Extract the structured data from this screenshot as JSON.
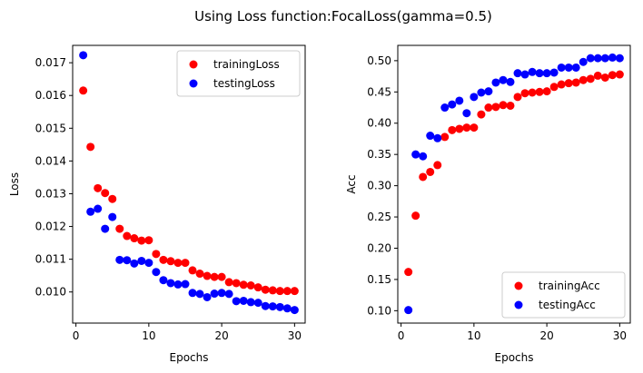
{
  "figure": {
    "suptitle": "Using Loss function:FocalLoss(gamma=0.5)"
  },
  "colors": {
    "training": "#ff0000",
    "testing": "#0000ff"
  },
  "chart_data": [
    {
      "type": "scatter",
      "title": "",
      "xlabel": "Epochs",
      "ylabel": "Loss",
      "xlim": [
        -0.45,
        31.45
      ],
      "ylim": [
        0.00905,
        0.01753
      ],
      "xticks": [
        0,
        10,
        20,
        30
      ],
      "xtick_labels": [
        "0",
        "10",
        "20",
        "30"
      ],
      "yticks": [
        0.01,
        0.011,
        0.012,
        0.013,
        0.014,
        0.015,
        0.016,
        0.017
      ],
      "ytick_labels": [
        "0.010",
        "0.011",
        "0.012",
        "0.013",
        "0.014",
        "0.015",
        "0.016",
        "0.017"
      ],
      "grid": false,
      "legend_position": "top-right",
      "x": [
        1,
        2,
        3,
        4,
        5,
        6,
        7,
        8,
        9,
        10,
        11,
        12,
        13,
        14,
        15,
        16,
        17,
        18,
        19,
        20,
        21,
        22,
        23,
        24,
        25,
        26,
        27,
        28,
        29,
        30
      ],
      "series": [
        {
          "name": "trainingLoss",
          "color": "#ff0000",
          "values": [
            0.01615,
            0.01443,
            0.01317,
            0.01302,
            0.01284,
            0.01193,
            0.01171,
            0.01164,
            0.01157,
            0.01158,
            0.01116,
            0.01098,
            0.01094,
            0.01089,
            0.01089,
            0.01066,
            0.01056,
            0.01049,
            0.01046,
            0.01046,
            0.0103,
            0.01027,
            0.01022,
            0.0102,
            0.01014,
            0.01007,
            0.01005,
            0.01003,
            0.01003,
            0.01003
          ]
        },
        {
          "name": "testingLoss",
          "color": "#0000ff",
          "values": [
            0.01723,
            0.01245,
            0.01254,
            0.01193,
            0.01229,
            0.01098,
            0.01097,
            0.01087,
            0.01095,
            0.01089,
            0.01061,
            0.01036,
            0.01027,
            0.01023,
            0.01024,
            0.00997,
            0.00994,
            0.00984,
            0.00995,
            0.00997,
            0.00994,
            0.00972,
            0.00973,
            0.00969,
            0.00967,
            0.00957,
            0.00956,
            0.00954,
            0.0095,
            0.00945
          ]
        }
      ]
    },
    {
      "type": "scatter",
      "title": "",
      "xlabel": "Epochs",
      "ylabel": "Acc",
      "xlim": [
        -0.45,
        31.45
      ],
      "ylim": [
        0.0802,
        0.5245
      ],
      "xticks": [
        0,
        10,
        20,
        30
      ],
      "xtick_labels": [
        "0",
        "10",
        "20",
        "30"
      ],
      "yticks": [
        0.1,
        0.15,
        0.2,
        0.25,
        0.3,
        0.35,
        0.4,
        0.45,
        0.5
      ],
      "ytick_labels": [
        "0.10",
        "0.15",
        "0.20",
        "0.25",
        "0.30",
        "0.35",
        "0.40",
        "0.45",
        "0.50"
      ],
      "grid": false,
      "legend_position": "bottom-right",
      "x": [
        1,
        2,
        3,
        4,
        5,
        6,
        7,
        8,
        9,
        10,
        11,
        12,
        13,
        14,
        15,
        16,
        17,
        18,
        19,
        20,
        21,
        22,
        23,
        24,
        25,
        26,
        27,
        28,
        29,
        30
      ],
      "series": [
        {
          "name": "trainingAcc",
          "color": "#ff0000",
          "values": [
            0.162,
            0.252,
            0.314,
            0.322,
            0.333,
            0.378,
            0.389,
            0.391,
            0.393,
            0.393,
            0.414,
            0.425,
            0.426,
            0.429,
            0.428,
            0.442,
            0.448,
            0.449,
            0.45,
            0.451,
            0.458,
            0.462,
            0.464,
            0.465,
            0.469,
            0.471,
            0.476,
            0.473,
            0.477,
            0.478
          ]
        },
        {
          "name": "testingAcc",
          "color": "#0000ff",
          "values": [
            0.101,
            0.35,
            0.347,
            0.38,
            0.376,
            0.425,
            0.43,
            0.436,
            0.416,
            0.442,
            0.449,
            0.451,
            0.465,
            0.469,
            0.466,
            0.48,
            0.478,
            0.482,
            0.48,
            0.48,
            0.481,
            0.489,
            0.489,
            0.489,
            0.498,
            0.504,
            0.504,
            0.504,
            0.505,
            0.504
          ]
        }
      ]
    }
  ]
}
